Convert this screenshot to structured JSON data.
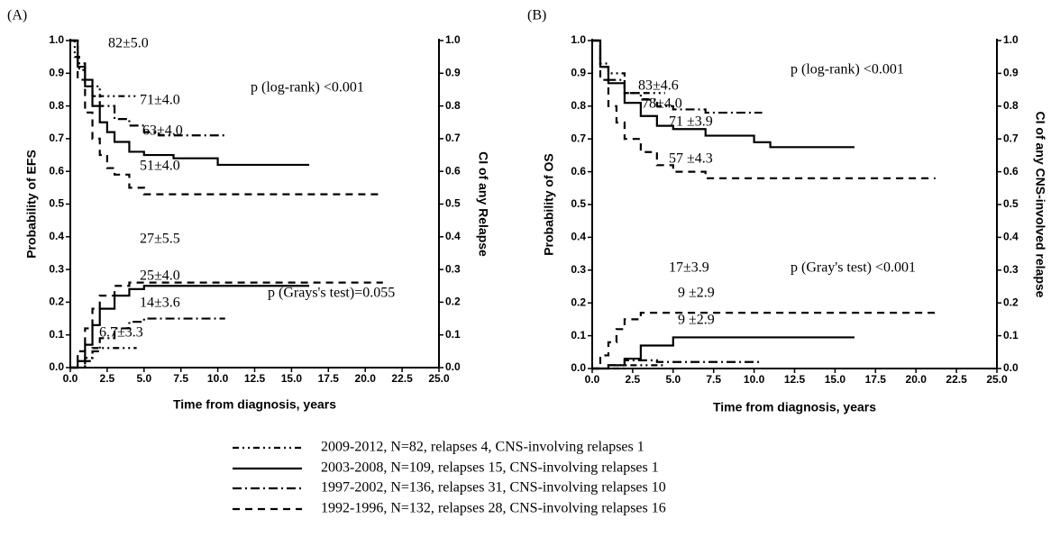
{
  "chart_data": [
    {
      "type": "line",
      "step": true,
      "title": "(A)",
      "xlabel": "Time from diagnosis, years",
      "ylabel": "Probability of EFS",
      "y2label": "CI of any Relapse",
      "xlim": [
        0,
        25
      ],
      "ylim": [
        0,
        1
      ],
      "y2lim": [
        0,
        1
      ],
      "xticks": [
        {
          "value": 0,
          "label": "0.0"
        },
        2.5,
        {
          "value": 5,
          "label": "5.0"
        },
        7.5,
        {
          "value": 10,
          "label": "10.0"
        },
        12.5,
        {
          "value": 15,
          "label": "15.0"
        },
        17.5,
        {
          "value": 20,
          "label": "20.0"
        },
        22.5,
        {
          "value": 25,
          "label": "25.0"
        }
      ],
      "yticks": [
        {
          "value": 0,
          "label": "0.0"
        },
        0.1,
        0.2,
        0.3,
        0.4,
        0.5,
        0.6,
        0.7,
        0.8,
        0.9,
        {
          "value": 1,
          "label": "1.0"
        }
      ],
      "y2ticks": [
        {
          "value": 0,
          "label": "0.0"
        },
        0.1,
        0.2,
        0.3,
        0.4,
        0.5,
        0.6,
        0.7,
        0.8,
        0.9,
        {
          "value": 1,
          "label": "1.0"
        }
      ],
      "series": [
        {
          "name": "2009-2012, N=82, relapses 4, CNS-involving relapses 1",
          "color": "#000000",
          "dash": "7,4,2,4,2,4",
          "x": [
            0,
            0.3,
            0.6,
            1,
            1.5,
            2,
            4.5
          ],
          "values": [
            1,
            0.95,
            0.91,
            0.88,
            0.86,
            0.83,
            0.83
          ]
        },
        {
          "name": "2003-2008, N=109, relapses 15, CNS-involving relapses 1",
          "color": "#000000",
          "dash": "none",
          "x": [
            0,
            0.5,
            1,
            1.5,
            2,
            2.5,
            3,
            4,
            5,
            7,
            10,
            16.2
          ],
          "values": [
            1,
            0.92,
            0.86,
            0.8,
            0.75,
            0.72,
            0.69,
            0.66,
            0.65,
            0.64,
            0.62,
            0.62
          ]
        },
        {
          "name": "1997-2002, N=136, relapses 31, CNS-involving relapses 10",
          "color": "#000000",
          "dash": "10,4,2,4",
          "x": [
            0,
            0.5,
            1,
            1.5,
            2,
            3,
            4,
            5,
            6,
            8,
            10.5
          ],
          "values": [
            1,
            0.93,
            0.88,
            0.83,
            0.8,
            0.76,
            0.74,
            0.72,
            0.71,
            0.71,
            0.71
          ]
        },
        {
          "name": "1992-1996, N=132, relapses 28, CNS-involving relapses 16",
          "color": "#000000",
          "dash": "8,6",
          "x": [
            0,
            0.5,
            1,
            1.5,
            2,
            2.5,
            3,
            4,
            5,
            21.2
          ],
          "values": [
            1,
            0.88,
            0.78,
            0.7,
            0.65,
            0.61,
            0.59,
            0.55,
            0.53,
            0.53
          ]
        },
        {
          "axis": "y2",
          "color": "#000000",
          "dash": "7,4,2,4,2,4",
          "x": [
            0,
            1,
            1.5,
            4.5
          ],
          "values": [
            0,
            0.03,
            0.06,
            0.06
          ]
        },
        {
          "axis": "y2",
          "color": "#000000",
          "dash": "none",
          "x": [
            0,
            0.5,
            1,
            1.5,
            2,
            3,
            4,
            5,
            16.2
          ],
          "values": [
            0,
            0.02,
            0.07,
            0.13,
            0.18,
            0.22,
            0.24,
            0.25,
            0.25
          ]
        },
        {
          "axis": "y2",
          "color": "#000000",
          "dash": "10,4,2,4",
          "x": [
            0,
            1,
            1.5,
            2,
            3,
            4,
            5,
            10.5
          ],
          "values": [
            0,
            0.02,
            0.05,
            0.09,
            0.12,
            0.14,
            0.15,
            0.15
          ]
        },
        {
          "axis": "y2",
          "color": "#000000",
          "dash": "8,6",
          "x": [
            0,
            0.5,
            1,
            1.5,
            2,
            3,
            4,
            5,
            21.2
          ],
          "values": [
            0,
            0.05,
            0.12,
            0.18,
            0.22,
            0.25,
            0.26,
            0.26,
            0.26
          ]
        }
      ],
      "annotations": [
        "82±5.0",
        "71±4.0",
        "63±4.0",
        "51±4.0",
        "27±5.5",
        "25±4.0",
        "14±3.6",
        "6.7±3.3",
        "p (log-rank) <0.001",
        "p (Grays's test)=0.055"
      ]
    },
    {
      "type": "line",
      "step": true,
      "title": "(B)",
      "xlabel": "Time from diagnosis, years",
      "ylabel": "Probability of OS",
      "y2label": "CI of any CNS-involved relapse",
      "xlim": [
        0,
        25
      ],
      "ylim": [
        0,
        1
      ],
      "y2lim": [
        0,
        1
      ],
      "xticks": [
        {
          "value": 0,
          "label": "0.0"
        },
        2.5,
        {
          "value": 5,
          "label": "5.0"
        },
        7.5,
        {
          "value": 10,
          "label": "10.0"
        },
        12.5,
        {
          "value": 15,
          "label": "15.0"
        },
        17.5,
        {
          "value": 20,
          "label": "20.0"
        },
        22.5,
        {
          "value": 25,
          "label": "25.0"
        }
      ],
      "yticks": [
        {
          "value": 0,
          "label": "0.0"
        },
        0.1,
        0.2,
        0.3,
        0.4,
        0.5,
        0.6,
        0.7,
        0.8,
        0.9,
        {
          "value": 1,
          "label": "1.0"
        }
      ],
      "y2ticks": [
        {
          "value": 0,
          "label": "0.0"
        },
        0.1,
        0.2,
        0.3,
        0.4,
        0.5,
        0.6,
        0.7,
        0.8,
        0.9,
        {
          "value": 1,
          "label": "1.0"
        }
      ],
      "series": [
        {
          "color": "#000000",
          "dash": "7,4,2,4,2,4",
          "x": [
            0,
            0.5,
            1,
            2,
            4.5
          ],
          "values": [
            1,
            0.93,
            0.9,
            0.84,
            0.84
          ]
        },
        {
          "color": "#000000",
          "dash": "none",
          "x": [
            0,
            0.5,
            1,
            2,
            3,
            4,
            5,
            7,
            10,
            11,
            16.2
          ],
          "values": [
            1,
            0.92,
            0.87,
            0.81,
            0.77,
            0.74,
            0.73,
            0.71,
            0.69,
            0.675,
            0.675
          ]
        },
        {
          "color": "#000000",
          "dash": "10,4,2,4",
          "x": [
            0,
            0.5,
            1,
            2,
            3,
            4,
            5,
            7,
            10.5
          ],
          "values": [
            1,
            0.92,
            0.88,
            0.84,
            0.82,
            0.8,
            0.79,
            0.78,
            0.78
          ]
        },
        {
          "color": "#000000",
          "dash": "8,6",
          "x": [
            0,
            0.5,
            1,
            1.5,
            2,
            3,
            4,
            5,
            7,
            21.2
          ],
          "values": [
            1,
            0.88,
            0.8,
            0.75,
            0.7,
            0.66,
            0.62,
            0.6,
            0.58,
            0.58
          ]
        },
        {
          "axis": "y2",
          "color": "#000000",
          "dash": "7,4,2,4,2,4",
          "x": [
            0,
            2,
            4.5
          ],
          "values": [
            0,
            0.01,
            0.01
          ]
        },
        {
          "axis": "y2",
          "color": "#000000",
          "dash": "none",
          "x": [
            0,
            1,
            2,
            3,
            5,
            16.2
          ],
          "values": [
            0,
            0.01,
            0.03,
            0.07,
            0.095,
            0.095
          ]
        },
        {
          "axis": "y2",
          "color": "#000000",
          "dash": "10,4,2,4",
          "x": [
            0,
            1,
            2,
            4,
            10.5
          ],
          "values": [
            0,
            0.01,
            0.025,
            0.02,
            0.02
          ]
        },
        {
          "axis": "y2",
          "color": "#000000",
          "dash": "8,6",
          "x": [
            0,
            0.5,
            1,
            1.5,
            2,
            3,
            4,
            21.2
          ],
          "values": [
            0,
            0.04,
            0.08,
            0.12,
            0.15,
            0.17,
            0.17,
            0.17
          ]
        }
      ],
      "annotations": [
        "83±4.6",
        "78±4.0",
        "71 ±3.9",
        "57 ±4.3",
        "17±3.9",
        "9 ±2.9",
        "9 ±2.9",
        "p (log-rank) <0.001",
        "p (Gray's test) <0.001"
      ]
    }
  ]
}
